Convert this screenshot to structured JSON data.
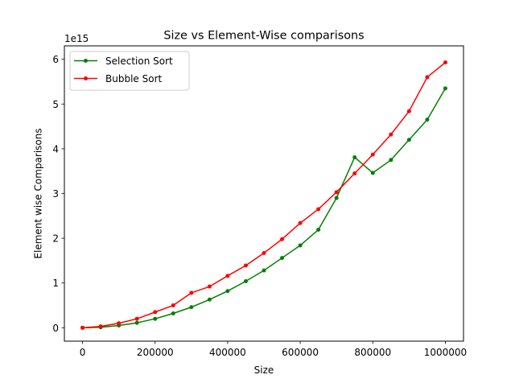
{
  "chart_data": {
    "type": "line",
    "title": "Size vs Element-Wise comparisons",
    "xlabel": "Size",
    "ylabel": "Element wise Comparisons",
    "y_offset_label": "1e15",
    "xlim": [
      -50000,
      1050000
    ],
    "ylim": [
      -0.3,
      6.3
    ],
    "x_ticks": [
      0,
      200000,
      400000,
      600000,
      800000,
      1000000
    ],
    "x_tick_labels": [
      "0",
      "200000",
      "400000",
      "600000",
      "800000",
      "1000000"
    ],
    "y_ticks": [
      0,
      1,
      2,
      3,
      4,
      5,
      6
    ],
    "y_tick_labels": [
      "0",
      "1",
      "2",
      "3",
      "4",
      "5",
      "6"
    ],
    "grid": false,
    "legend_position": "top-left",
    "x": [
      0,
      50000,
      100000,
      150000,
      200000,
      250000,
      300000,
      350000,
      400000,
      450000,
      500000,
      550000,
      600000,
      650000,
      700000,
      750000,
      800000,
      850000,
      900000,
      950000,
      1000000
    ],
    "series": [
      {
        "name": "Selection Sort",
        "color": "#008000",
        "values": [
          0.0,
          0.01,
          0.05,
          0.11,
          0.2,
          0.32,
          0.46,
          0.63,
          0.82,
          1.04,
          1.28,
          1.56,
          1.84,
          2.19,
          2.9,
          3.81,
          3.46,
          3.75,
          4.2,
          4.65,
          5.35
        ]
      },
      {
        "name": "Bubble Sort",
        "color": "#ff0000",
        "values": [
          0.0,
          0.03,
          0.1,
          0.2,
          0.35,
          0.5,
          0.78,
          0.92,
          1.16,
          1.39,
          1.67,
          1.98,
          2.34,
          2.65,
          3.03,
          3.45,
          3.87,
          4.32,
          4.84,
          5.6,
          5.93
        ]
      }
    ]
  }
}
